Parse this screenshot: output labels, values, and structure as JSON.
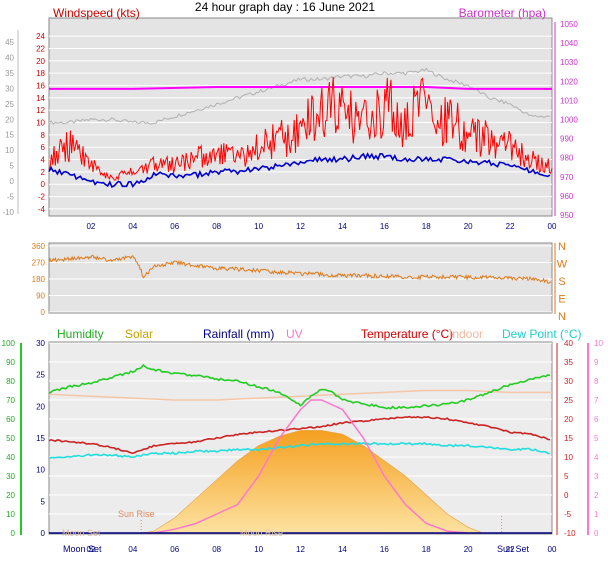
{
  "title": "24 hour graph day : 16 June 2021",
  "time_ticks": [
    "02",
    "04",
    "06",
    "08",
    "10",
    "12",
    "14",
    "16",
    "18",
    "20",
    "22",
    "00"
  ],
  "colors": {
    "wind_gust": "#ff0000",
    "wind_avg": "#0000cc",
    "barometer": "#ff00ff",
    "baro_trace": "#b0b0b0",
    "direction": "#dd7a1a",
    "humidity": "#22cc22",
    "solar": "#f5b040",
    "rainfall": "#000080",
    "uv": "#ff77cc",
    "temperature": "#cc2222",
    "indoor": "#f5c6a6",
    "dew_point": "#22dddd",
    "panel_bg": "#e4e4e4"
  },
  "chart_data": [
    {
      "type": "line",
      "panel": "wind",
      "left_axis_title": "Windspeed (kts)",
      "right_axis_title": "Barometer (hpa)",
      "left_inner_ticks": [
        "24",
        "22",
        "20",
        "18",
        "16",
        "14",
        "12",
        "10",
        "8",
        "6",
        "4",
        "2",
        "0",
        "-2",
        "-4"
      ],
      "left_outer_ticks": [
        "45",
        "40",
        "35",
        "30",
        "25",
        "20",
        "15",
        "10",
        "5",
        "0",
        "-5",
        "-10"
      ],
      "right_ticks": [
        "1050",
        "1040",
        "1030",
        "1020",
        "1010",
        "1000",
        "990",
        "980",
        "970",
        "960",
        "950"
      ],
      "ylim_kts": [
        -4.5,
        25
      ],
      "series": [
        {
          "key": "wind_gust",
          "hours": [
            0,
            1,
            2,
            3,
            4,
            5,
            6,
            7,
            8,
            9,
            10,
            11,
            12,
            12.5,
            13,
            13.5,
            14,
            14.5,
            15,
            15.5,
            16,
            16.5,
            17,
            17.5,
            18,
            18.5,
            19,
            19.5,
            20,
            20.5,
            21,
            21.5,
            22,
            22.5,
            23,
            23.5,
            24
          ],
          "values": [
            4,
            6,
            3,
            1,
            2,
            3,
            3,
            4,
            5,
            4,
            6,
            7,
            8,
            10,
            11,
            12,
            11,
            10,
            11,
            10,
            12,
            11,
            9,
            13,
            11,
            9,
            10,
            9,
            8,
            7,
            7,
            6,
            6,
            5,
            4,
            3,
            3
          ]
        },
        {
          "key": "wind_avg",
          "hours": [
            0,
            1,
            2,
            3,
            4,
            5,
            6,
            7,
            8,
            9,
            10,
            11,
            12,
            13,
            14,
            15,
            16,
            17,
            18,
            19,
            20,
            21,
            22,
            23,
            24
          ],
          "values": [
            2.5,
            1.5,
            0.5,
            0,
            0,
            1.5,
            1.5,
            1.5,
            2,
            2,
            2.5,
            3,
            3.5,
            4,
            4,
            4.5,
            4.5,
            4,
            4,
            4,
            3.5,
            3.5,
            3,
            2,
            1.5
          ]
        }
      ],
      "barometer": {
        "key": "barometer",
        "hours": [
          0,
          4,
          8,
          12,
          14,
          16,
          18,
          20,
          22,
          24
        ],
        "values": [
          1016,
          1016,
          1017,
          1017,
          1017,
          1017,
          1017,
          1016,
          1016,
          1016
        ]
      },
      "baro_trace": {
        "key": "baro_trace",
        "hours": [
          0,
          1,
          2,
          3,
          4,
          5,
          6,
          7,
          8,
          9,
          10,
          11,
          12,
          13,
          14,
          15,
          16,
          17,
          18,
          19,
          20,
          21,
          22,
          23,
          24
        ],
        "values": [
          10,
          10,
          10.5,
          10.5,
          10,
          10,
          11,
          12,
          13,
          14,
          15,
          16,
          17,
          17,
          17.5,
          17.5,
          18,
          18,
          18.5,
          17,
          16,
          14,
          13,
          11,
          11
        ]
      }
    },
    {
      "type": "line",
      "panel": "direction",
      "left_ticks": [
        "360",
        "270",
        "180",
        "90",
        "0"
      ],
      "right_labels": [
        "N",
        "W",
        "S",
        "E",
        "N"
      ],
      "ylim": [
        0,
        360
      ],
      "series": [
        {
          "key": "direction",
          "hours": [
            0,
            1,
            2,
            3,
            4,
            4.3,
            4.5,
            5,
            6,
            7,
            8,
            10,
            12,
            14,
            16,
            18,
            20,
            22,
            23,
            24
          ],
          "values": [
            280,
            290,
            300,
            280,
            300,
            260,
            185,
            250,
            270,
            255,
            240,
            225,
            210,
            200,
            195,
            190,
            190,
            185,
            180,
            165
          ]
        }
      ]
    },
    {
      "type": "area",
      "panel": "weather",
      "legend": [
        "Humidity",
        "Solar",
        "Rainfall (mm)",
        "UV",
        "Temperature (°C)",
        "Indoor",
        "Dew Point (°C)"
      ],
      "left_outer_ticks": [
        "100",
        "90",
        "80",
        "70",
        "60",
        "50",
        "40",
        "30",
        "20",
        "10",
        "0"
      ],
      "left_inner_ticks": [
        "30",
        "25",
        "20",
        "15",
        "10",
        "5",
        "0"
      ],
      "right_temp_ticks": [
        "40",
        "35",
        "30",
        "25",
        "20",
        "15",
        "10",
        "5",
        "0",
        "-5",
        "-10"
      ],
      "right_uv_ticks": [
        "10",
        "9",
        "8",
        "7",
        "6",
        "5",
        "4",
        "3",
        "2",
        "1",
        "0"
      ],
      "annotations": [
        "Moon Set",
        "Sun Rise",
        "Moon Rise",
        "Sun Set"
      ],
      "ylim_temp": [
        -10,
        40
      ],
      "series": [
        {
          "key": "humidity",
          "hours": [
            0,
            1,
            2,
            3,
            4,
            4.5,
            5,
            6,
            7,
            8,
            9,
            10,
            11,
            12,
            12.5,
            13,
            13.5,
            14,
            15,
            16,
            17,
            18,
            19,
            20,
            21,
            22,
            23,
            24
          ],
          "values": [
            74,
            77,
            79,
            82,
            85,
            88,
            86,
            84,
            83,
            81,
            80,
            77,
            74,
            67,
            72,
            76,
            74,
            70,
            68,
            66,
            66,
            67,
            68,
            70,
            74,
            78,
            81,
            83
          ]
        },
        {
          "key": "temperature",
          "hours": [
            0,
            1,
            2,
            3,
            4,
            5,
            6,
            7,
            8,
            9,
            10,
            11,
            12,
            13,
            14,
            15,
            16,
            17,
            18,
            19,
            20,
            21,
            22,
            23,
            24
          ],
          "values": [
            14.5,
            14,
            13.5,
            12.5,
            11,
            13,
            13.5,
            14,
            15,
            16,
            16.5,
            17,
            17.5,
            18,
            19,
            19.5,
            20,
            20.5,
            20.5,
            20,
            19,
            18,
            16.5,
            16,
            14.5
          ]
        },
        {
          "key": "dew_point",
          "hours": [
            0,
            1,
            2,
            3,
            4,
            5,
            6,
            7,
            8,
            9,
            10,
            11,
            12,
            13,
            14,
            15,
            16,
            17,
            18,
            19,
            20,
            21,
            22,
            23,
            24
          ],
          "values": [
            10,
            10,
            10.5,
            10.5,
            10,
            11,
            11,
            11.5,
            11.5,
            12,
            12,
            12.5,
            13,
            13.5,
            13.5,
            13.5,
            13.5,
            13.5,
            13.5,
            13,
            13,
            12.5,
            12,
            12,
            11
          ]
        },
        {
          "key": "indoor",
          "hours": [
            0,
            2,
            4,
            6,
            8,
            10,
            12,
            14,
            16,
            18,
            20,
            22,
            24
          ],
          "values": [
            26.5,
            26,
            25.5,
            25,
            25,
            25.5,
            26,
            26.5,
            27,
            27.5,
            27.5,
            27,
            27
          ]
        },
        {
          "key": "solar",
          "hours": [
            4.5,
            5,
            6,
            7,
            8,
            9,
            10,
            11,
            12,
            13,
            14,
            15,
            16,
            17,
            18,
            19,
            20,
            20.7
          ],
          "values": [
            -10,
            -9.5,
            -6,
            -1,
            4,
            9,
            13,
            15.5,
            17,
            17,
            16,
            13,
            9,
            5,
            0,
            -5,
            -8.5,
            -10
          ]
        },
        {
          "key": "uv",
          "hours": [
            4.5,
            5,
            6,
            7,
            8,
            9,
            10,
            11,
            12,
            12.5,
            13,
            14,
            15,
            16,
            17,
            18,
            19,
            20
          ],
          "values": [
            0,
            0,
            0.2,
            0.5,
            1,
            1.5,
            3,
            5,
            6.5,
            7,
            7,
            6.5,
            5,
            3,
            1.5,
            0.5,
            0.1,
            0
          ]
        }
      ]
    }
  ]
}
